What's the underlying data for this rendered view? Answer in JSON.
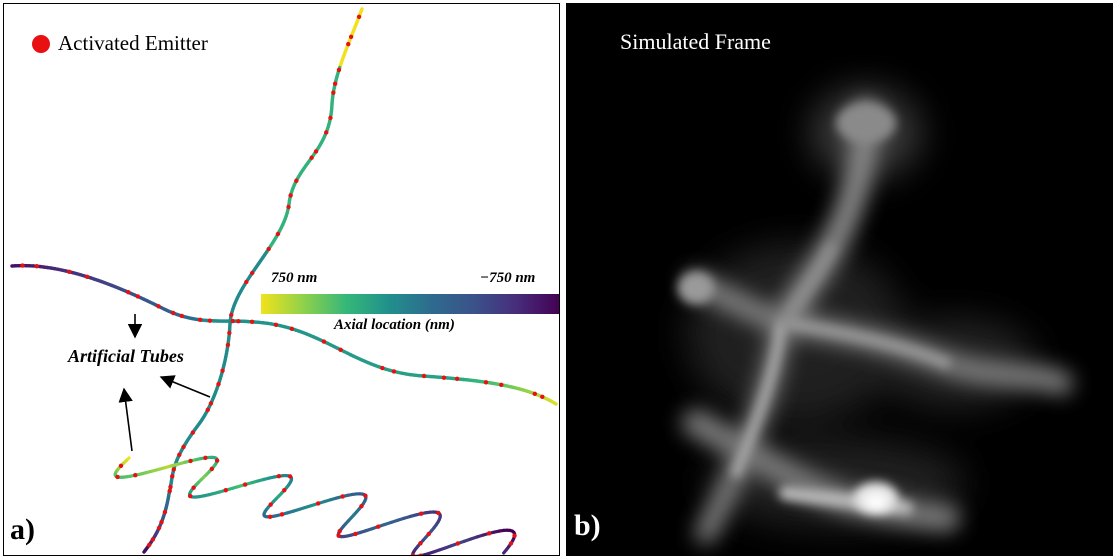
{
  "panel_a": {
    "letter": "a)",
    "legend_label": "Activated Emitter",
    "emitter_color": "#e81010",
    "colorbar": {
      "min_label": "750 nm",
      "max_label": "−750 nm",
      "axis_label": "Axial location (nm)",
      "colors": [
        "#f0e21c",
        "#8fd14a",
        "#35b779",
        "#21908c",
        "#2e6b8e",
        "#3b528b",
        "#472d7b",
        "#440154"
      ]
    },
    "tubes_label": "Artificial Tubes"
  },
  "panel_b": {
    "letter": "b)",
    "title": "Simulated Frame"
  }
}
